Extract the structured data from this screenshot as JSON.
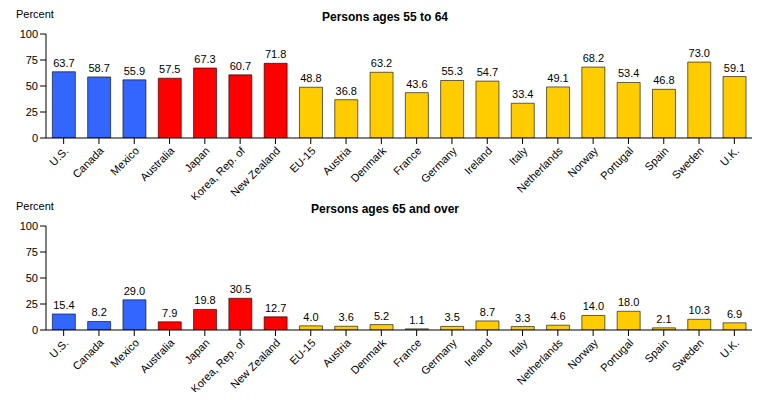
{
  "chart_data": [
    {
      "type": "bar",
      "title": "Persons ages 55 to 64",
      "ylabel": "Percent",
      "categories": [
        "U.S.",
        "Canada",
        "Mexico",
        "Australia",
        "Japan",
        "Korea, Rep. of",
        "New Zealand",
        "EU-15",
        "Austria",
        "Denmark",
        "France",
        "Germany",
        "Ireland",
        "Italy",
        "Netherlands",
        "Norway",
        "Portugal",
        "Spain",
        "Sweden",
        "U.K."
      ],
      "values": [
        63.7,
        58.7,
        55.9,
        57.5,
        67.3,
        60.7,
        71.8,
        48.8,
        36.8,
        63.2,
        43.6,
        55.3,
        54.7,
        33.4,
        49.1,
        68.2,
        53.4,
        46.8,
        73.0,
        59.1
      ],
      "value_labels": [
        "63.7",
        "58.7",
        "55.9",
        "57.5",
        "67.3",
        "60.7",
        "71.8",
        "48.8",
        "36.8",
        "63.2",
        "43.6",
        "55.3",
        "54.7",
        "33.4",
        "49.1",
        "68.2",
        "53.4",
        "46.8",
        "73.0",
        "59.1"
      ],
      "colors": [
        "#3366ff",
        "#3366ff",
        "#3366ff",
        "#ff0000",
        "#ff0000",
        "#ff0000",
        "#ff0000",
        "#ffcc00",
        "#ffcc00",
        "#ffcc00",
        "#ffcc00",
        "#ffcc00",
        "#ffcc00",
        "#ffcc00",
        "#ffcc00",
        "#ffcc00",
        "#ffcc00",
        "#ffcc00",
        "#ffcc00",
        "#ffcc00"
      ],
      "ylim": [
        0,
        100
      ],
      "yticks": [
        0,
        25,
        50,
        75,
        100
      ],
      "grid": false,
      "data_labels": true
    },
    {
      "type": "bar",
      "title": "Persons ages 65 and over",
      "ylabel": "Percent",
      "categories": [
        "U.S.",
        "Canada",
        "Mexico",
        "Australia",
        "Japan",
        "Korea, Rep. of",
        "New Zealand",
        "EU-15",
        "Austria",
        "Denmark",
        "France",
        "Germany",
        "Ireland",
        "Italy",
        "Netherlands",
        "Norway",
        "Portugal",
        "Spain",
        "Sweden",
        "U.K."
      ],
      "values": [
        15.4,
        8.2,
        29.0,
        7.9,
        19.8,
        30.5,
        12.7,
        4.0,
        3.6,
        5.2,
        1.1,
        3.5,
        8.7,
        3.3,
        4.6,
        14.0,
        18.0,
        2.1,
        10.3,
        6.9
      ],
      "value_labels": [
        "15.4",
        "8.2",
        "29.0",
        "7.9",
        "19.8",
        "30.5",
        "12.7",
        "4.0",
        "3.6",
        "5.2",
        "1.1",
        "3.5",
        "8.7",
        "3.3",
        "4.6",
        "14.0",
        "18.0",
        "2.1",
        "10.3",
        "6.9"
      ],
      "colors": [
        "#3366ff",
        "#3366ff",
        "#3366ff",
        "#ff0000",
        "#ff0000",
        "#ff0000",
        "#ff0000",
        "#ffcc00",
        "#ffcc00",
        "#ffcc00",
        "#ffcc00",
        "#ffcc00",
        "#ffcc00",
        "#ffcc00",
        "#ffcc00",
        "#ffcc00",
        "#ffcc00",
        "#ffcc00",
        "#ffcc00",
        "#ffcc00"
      ],
      "ylim": [
        0,
        100
      ],
      "yticks": [
        0,
        25,
        50,
        75,
        100
      ],
      "grid": false,
      "data_labels": true
    }
  ]
}
